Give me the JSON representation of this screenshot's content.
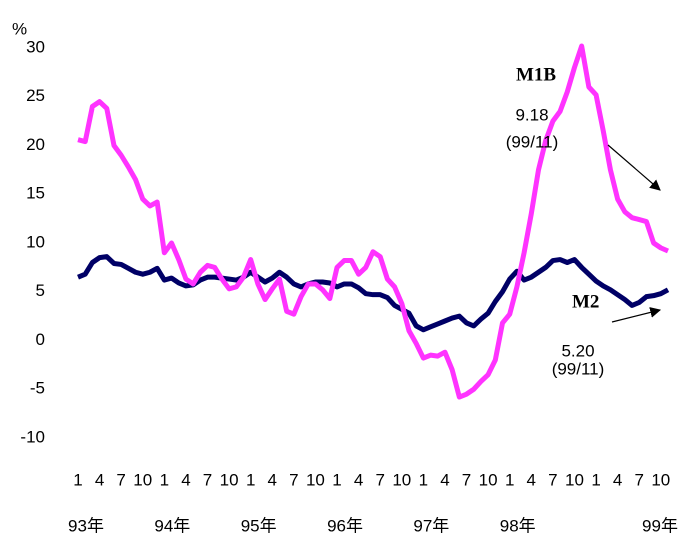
{
  "chart_data": {
    "type": "line",
    "y_unit": "%",
    "categories": [
      "1",
      null,
      null,
      "4",
      null,
      null,
      "7",
      null,
      null,
      "10",
      null,
      null,
      "1",
      null,
      null,
      "4",
      null,
      null,
      "7",
      null,
      null,
      "10",
      null,
      null,
      "1",
      null,
      null,
      "4",
      null,
      null,
      "7",
      null,
      null,
      "10",
      null,
      null,
      "1",
      null,
      null,
      "4",
      null,
      null,
      "7",
      null,
      null,
      "10",
      null,
      null,
      "1",
      null,
      null,
      "4",
      null,
      null,
      "7",
      null,
      null,
      "10",
      null,
      null,
      "1",
      null,
      null,
      "4",
      null,
      null,
      "7",
      null,
      null,
      "10",
      null,
      null,
      "1",
      null,
      null,
      "4",
      null,
      null,
      "7",
      null,
      null,
      "10",
      null
    ],
    "year_labels": [
      "93年",
      "94年",
      "95年",
      "96年",
      "97年",
      "98年",
      "99年"
    ],
    "series": [
      {
        "name": "M1B",
        "color": "#ff33ff",
        "values": [
          20.6,
          20.4,
          24,
          24.5,
          23.8,
          20,
          19,
          17.8,
          16.5,
          14.5,
          13.8,
          14.2,
          9,
          10,
          8.3,
          6.3,
          5.8,
          7,
          7.7,
          7.5,
          6.3,
          5.3,
          5.5,
          6.5,
          8.3,
          5.8,
          4.2,
          5.3,
          6.3,
          3,
          2.7,
          4.5,
          5.8,
          5.8,
          5.2,
          4.3,
          7.5,
          8.2,
          8.2,
          6.8,
          7.5,
          9.1,
          8.6,
          6.3,
          5.5,
          3.8,
          1,
          -0.3,
          -1.8,
          -1.5,
          -1.6,
          -1.2,
          -3,
          -5.8,
          -5.5,
          -5,
          -4.2,
          -3.5,
          -2,
          1.8,
          2.7,
          5.5,
          9,
          13,
          17.5,
          20.5,
          22.5,
          23.5,
          25.5,
          28,
          30.2,
          26,
          25.2,
          21.5,
          17.5,
          14.5,
          13.2,
          12.6,
          12.4,
          12.2,
          10,
          9.5,
          9.18
        ]
      },
      {
        "name": "M2",
        "color": "#000066",
        "values": [
          6.5,
          6.8,
          8,
          8.5,
          8.6,
          7.9,
          7.8,
          7.4,
          7,
          6.8,
          7,
          7.4,
          6.2,
          6.4,
          5.9,
          5.6,
          5.7,
          6.2,
          6.5,
          6.5,
          6.4,
          6.3,
          6.2,
          6.5,
          7,
          6.5,
          6,
          6.4,
          7,
          6.5,
          5.8,
          5.5,
          5.8,
          6,
          6,
          5.9,
          5.5,
          5.8,
          5.8,
          5.4,
          4.8,
          4.7,
          4.7,
          4.4,
          3.6,
          3.2,
          2.8,
          1.5,
          1.1,
          1.4,
          1.7,
          2,
          2.3,
          2.5,
          1.8,
          1.5,
          2.2,
          2.8,
          4,
          5,
          6.3,
          7.1,
          6.2,
          6.5,
          7,
          7.5,
          8.2,
          8.3,
          8,
          8.3,
          7.5,
          6.8,
          6.1,
          5.6,
          5.2,
          4.7,
          4.2,
          3.6,
          3.9,
          4.5,
          4.6,
          4.8,
          5.2
        ]
      }
    ],
    "annotations": [
      {
        "text": "9.18"
      },
      {
        "text": "(99/11)"
      },
      {
        "text": "5.20"
      },
      {
        "text": "(99/11)"
      }
    ],
    "ylim": [
      -10,
      30
    ],
    "yticks": [
      -10,
      -5,
      0,
      5,
      10,
      15,
      20,
      25,
      30
    ]
  }
}
